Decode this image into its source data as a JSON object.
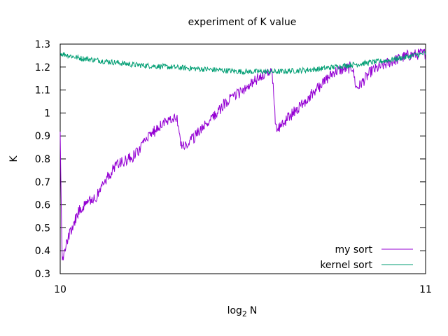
{
  "chart_data": {
    "type": "line",
    "title": "experiment of K value",
    "xlabel_main": "log",
    "xlabel_sub": "2",
    "xlabel_var": "N",
    "ylabel": "K",
    "xlim": [
      10,
      11
    ],
    "ylim": [
      0.3,
      1.3
    ],
    "x_ticks": [
      10,
      11
    ],
    "x_tick_labels": [
      "10",
      "11"
    ],
    "y_ticks": [
      0.3,
      0.4,
      0.5,
      0.6,
      0.7,
      0.8,
      0.9,
      1.0,
      1.1,
      1.2,
      1.3
    ],
    "y_tick_labels": [
      "0.3",
      "0.4",
      "0.5",
      "0.6",
      "0.7",
      "0.8",
      "0.9",
      "1",
      "1.1",
      "1.2",
      "1.3"
    ],
    "grid": false,
    "legend_position": "bottom-right",
    "series": [
      {
        "name": "my sort",
        "color": "#9400d3",
        "noise": 0.025,
        "x": [
          10.0,
          10.005,
          10.01,
          10.02,
          10.05,
          10.1,
          10.15,
          10.2,
          10.25,
          10.3,
          10.32,
          10.33,
          10.34,
          10.4,
          10.45,
          10.5,
          10.55,
          10.58,
          10.59,
          10.6,
          10.65,
          10.7,
          10.75,
          10.8,
          10.81,
          10.82,
          10.85,
          10.9,
          10.95,
          11.0
        ],
        "y": [
          0.9,
          0.37,
          0.38,
          0.45,
          0.57,
          0.64,
          0.77,
          0.81,
          0.91,
          0.98,
          0.98,
          0.86,
          0.85,
          0.95,
          1.04,
          1.1,
          1.16,
          1.18,
          0.93,
          0.94,
          1.02,
          1.1,
          1.18,
          1.2,
          1.11,
          1.12,
          1.18,
          1.22,
          1.25,
          1.26
        ]
      },
      {
        "name": "kernel sort",
        "color": "#009e73",
        "noise": 0.012,
        "x": [
          10.0,
          10.05,
          10.1,
          10.2,
          10.3,
          10.4,
          10.5,
          10.6,
          10.7,
          10.8,
          10.9,
          11.0
        ],
        "y": [
          1.26,
          1.24,
          1.23,
          1.21,
          1.2,
          1.19,
          1.18,
          1.18,
          1.19,
          1.21,
          1.23,
          1.26
        ]
      }
    ]
  }
}
